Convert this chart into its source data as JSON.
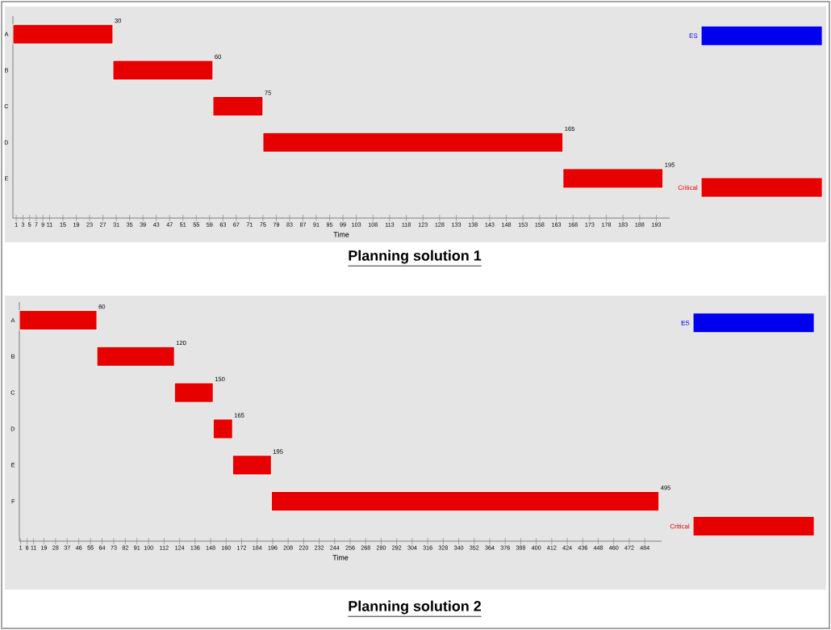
{
  "chart_data": [
    {
      "type": "bar",
      "orientation": "horizontal",
      "title": "Planning solution 1",
      "xlabel": "Time",
      "categories": [
        "A",
        "B",
        "C",
        "D",
        "E"
      ],
      "series": [
        {
          "name": "ES",
          "color": "#0000ee",
          "values": [
            null,
            null,
            null,
            null,
            null
          ]
        },
        {
          "name": "Critical",
          "color": "#e60000",
          "values": [
            30,
            30,
            15,
            90,
            30
          ],
          "base": [
            0,
            30,
            60,
            75,
            165
          ]
        }
      ],
      "annotations": [
        {
          "text": "30",
          "x": 30,
          "y": "A"
        },
        {
          "text": "60",
          "x": 60,
          "y": "B"
        },
        {
          "text": "75",
          "x": 75,
          "y": "C"
        },
        {
          "text": "165",
          "x": 165,
          "y": "D"
        },
        {
          "text": "195",
          "x": 195,
          "y": "E"
        }
      ],
      "xlim": [
        0,
        197
      ],
      "xticks": [
        1,
        3,
        5,
        7,
        9,
        11,
        15,
        19,
        23,
        27,
        31,
        35,
        39,
        43,
        47,
        51,
        55,
        59,
        63,
        67,
        71,
        75,
        79,
        83,
        87,
        91,
        95,
        99,
        103,
        108,
        113,
        118,
        123,
        128,
        133,
        138,
        143,
        148,
        153,
        158,
        163,
        168,
        173,
        178,
        183,
        188,
        193
      ],
      "legend": "right",
      "grid": false
    },
    {
      "type": "bar",
      "orientation": "horizontal",
      "title": "Planning solution 2",
      "xlabel": "Time",
      "categories": [
        "A",
        "B",
        "C",
        "D",
        "E",
        "F"
      ],
      "series": [
        {
          "name": "ES",
          "color": "#0000ee",
          "values": [
            null,
            null,
            null,
            null,
            null,
            null
          ]
        },
        {
          "name": "Critical",
          "color": "#e60000",
          "values": [
            60,
            60,
            30,
            15,
            30,
            300
          ],
          "base": [
            0,
            60,
            120,
            150,
            165,
            195
          ]
        }
      ],
      "annotations": [
        {
          "text": "60",
          "x": 60,
          "y": "A"
        },
        {
          "text": "120",
          "x": 120,
          "y": "B"
        },
        {
          "text": "150",
          "x": 150,
          "y": "C"
        },
        {
          "text": "165",
          "x": 165,
          "y": "D"
        },
        {
          "text": "195",
          "x": 195,
          "y": "E"
        },
        {
          "text": "495",
          "x": 495,
          "y": "F"
        }
      ],
      "xlim": [
        0,
        497
      ],
      "xticks": [
        1,
        6,
        11,
        19,
        28,
        37,
        46,
        55,
        64,
        73,
        82,
        91,
        100,
        112,
        124,
        136,
        148,
        160,
        172,
        184,
        196,
        208,
        220,
        232,
        244,
        256,
        268,
        280,
        292,
        304,
        316,
        328,
        340,
        352,
        364,
        376,
        388,
        400,
        412,
        424,
        436,
        448,
        460,
        472,
        484
      ],
      "legend": "right",
      "grid": false
    }
  ]
}
